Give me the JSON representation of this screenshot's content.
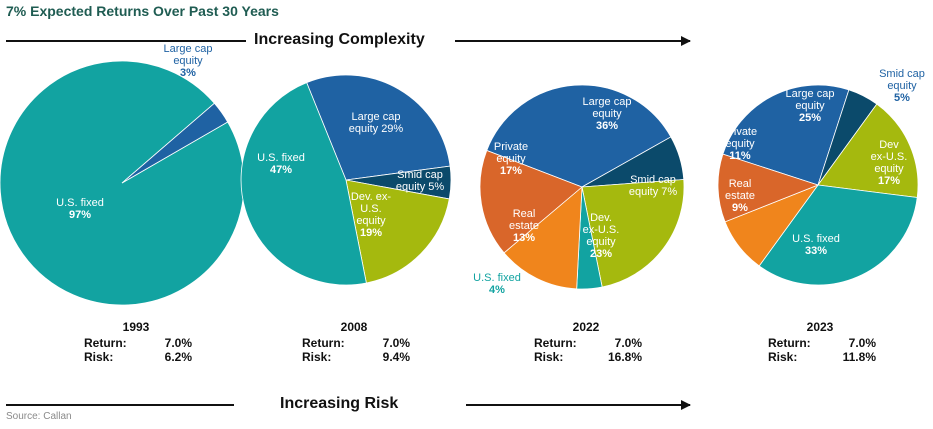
{
  "title": "7% Expected Returns Over Past 30 Years",
  "top_arrow_label": "Increasing Complexity",
  "bottom_arrow_label": "Increasing Risk",
  "source": "Source: Callan",
  "colors": {
    "us_fixed": "#12a3a1",
    "large_cap": "#1f62a3",
    "smid_cap": "#0b4a6b",
    "dev_ex_us": "#a5b90e",
    "private_equity": "#d9662a",
    "real_estate": "#f0851c"
  },
  "chart_data": [
    {
      "type": "pie",
      "year": "1993",
      "return_label": "Return:",
      "return_value": "7.0%",
      "risk_label": "Risk:",
      "risk_value": "6.2%",
      "slices": [
        {
          "label_lines": [
            "U.S. fixed",
            "97%"
          ],
          "value": 97,
          "color": "us_fixed"
        },
        {
          "label_lines": [
            "Large cap",
            "equity",
            "3%"
          ],
          "value": 3,
          "color": "large_cap"
        }
      ]
    },
    {
      "type": "pie",
      "year": "2008",
      "return_label": "Return:",
      "return_value": "7.0%",
      "risk_label": "Risk:",
      "risk_value": "9.4%",
      "slices": [
        {
          "label_lines": [
            "Large cap",
            "equity 29%"
          ],
          "value": 29,
          "color": "large_cap"
        },
        {
          "label_lines": [
            "Smid cap",
            "equity 5%"
          ],
          "value": 5,
          "color": "smid_cap"
        },
        {
          "label_lines": [
            "Dev. ex-",
            "U.S.",
            "equity",
            "19%"
          ],
          "value": 19,
          "color": "dev_ex_us"
        },
        {
          "label_lines": [
            "U.S. fixed",
            "47%"
          ],
          "value": 47,
          "color": "us_fixed"
        }
      ]
    },
    {
      "type": "pie",
      "year": "2022",
      "return_label": "Return:",
      "return_value": "7.0%",
      "risk_label": "Risk:",
      "risk_value": "16.8%",
      "slices": [
        {
          "label_lines": [
            "Large cap",
            "equity",
            "36%"
          ],
          "value": 36,
          "color": "large_cap"
        },
        {
          "label_lines": [
            "Smid cap",
            "equity 7%"
          ],
          "value": 7,
          "color": "smid_cap"
        },
        {
          "label_lines": [
            "Dev.",
            "ex-U.S.",
            "equity",
            "23%"
          ],
          "value": 23,
          "color": "dev_ex_us"
        },
        {
          "label_lines": [
            "U.S. fixed",
            "4%"
          ],
          "value": 4,
          "color": "us_fixed"
        },
        {
          "label_lines": [
            "Real",
            "estate",
            "13%"
          ],
          "value": 13,
          "color": "real_estate"
        },
        {
          "label_lines": [
            "Private",
            "equity",
            "17%"
          ],
          "value": 17,
          "color": "private_equity"
        }
      ]
    },
    {
      "type": "pie",
      "year": "2023",
      "return_label": "Return:",
      "return_value": "7.0%",
      "risk_label": "Risk:",
      "risk_value": "11.8%",
      "slices": [
        {
          "label_lines": [
            "Large cap",
            "equity",
            "25%"
          ],
          "value": 25,
          "color": "large_cap"
        },
        {
          "label_lines": [
            "Smid cap",
            "equity",
            "5%"
          ],
          "value": 5,
          "color": "smid_cap"
        },
        {
          "label_lines": [
            "Dev",
            "ex-U.S.",
            "equity",
            "17%"
          ],
          "value": 17,
          "color": "dev_ex_us"
        },
        {
          "label_lines": [
            "U.S. fixed",
            "33%"
          ],
          "value": 33,
          "color": "us_fixed"
        },
        {
          "label_lines": [
            "Real",
            "estate",
            "9%"
          ],
          "value": 9,
          "color": "real_estate"
        },
        {
          "label_lines": [
            "Private",
            "equity",
            "11%"
          ],
          "value": 11,
          "color": "private_equity"
        }
      ]
    }
  ]
}
